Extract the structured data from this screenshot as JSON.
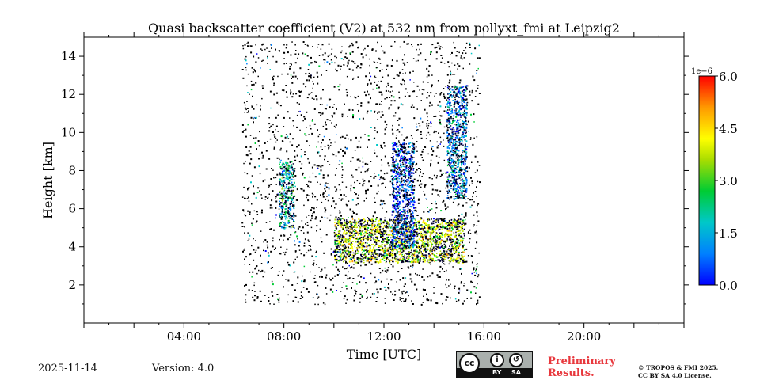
{
  "chart_data": {
    "type": "heatmap",
    "title": "Quasi backscatter coefficient (V2) at 532 nm from pollyxt_fmi at Leipzig2",
    "xlabel": "Time [UTC]",
    "ylabel": "Height [km]",
    "xlim": [
      0,
      24
    ],
    "ylim": [
      0,
      15
    ],
    "x_ticks": [
      {
        "value": 4,
        "label": "04:00"
      },
      {
        "value": 8,
        "label": "08:00"
      },
      {
        "value": 12,
        "label": "12:00"
      },
      {
        "value": 16,
        "label": "16:00"
      },
      {
        "value": 20,
        "label": "20:00"
      }
    ],
    "y_ticks": [
      {
        "value": 2,
        "label": "2"
      },
      {
        "value": 4,
        "label": "4"
      },
      {
        "value": 6,
        "label": "6"
      },
      {
        "value": 8,
        "label": "8"
      },
      {
        "value": 10,
        "label": "10"
      },
      {
        "value": 12,
        "label": "12"
      },
      {
        "value": 14,
        "label": "14"
      }
    ],
    "colorbar": {
      "min": 0.0,
      "max": 6.0,
      "exponent_label": "1e−6",
      "ticks": [
        {
          "value": 0.0,
          "label": "0.0"
        },
        {
          "value": 1.5,
          "label": "1.5"
        },
        {
          "value": 3.0,
          "label": "3.0"
        },
        {
          "value": 4.5,
          "label": "4.5"
        },
        {
          "value": 6.0,
          "label": "6.0"
        }
      ],
      "colormap": [
        "#0000ff",
        "#0080ff",
        "#00c8c8",
        "#00cc33",
        "#aadd00",
        "#ffff00",
        "#ff9900",
        "#ff0000"
      ]
    },
    "features": [
      {
        "name": "aerosol-layer",
        "t": [
          10,
          15.2
        ],
        "h": [
          3.2,
          5.5
        ],
        "value": 3.8
      },
      {
        "name": "cloud-column-1",
        "t": [
          7.8,
          8.4
        ],
        "h": [
          5.0,
          8.5
        ],
        "value": 2.0
      },
      {
        "name": "cloud-column-2",
        "t": [
          12.3,
          13.2
        ],
        "h": [
          4.0,
          9.5
        ],
        "value": 0.6
      },
      {
        "name": "cloud-column-3",
        "t": [
          14.5,
          15.3
        ],
        "h": [
          6.5,
          12.5
        ],
        "value": 1.2
      },
      {
        "name": "sparse-noise",
        "t": [
          6.3,
          15.8
        ],
        "h": [
          1.0,
          14.8
        ],
        "value": 0.2
      }
    ]
  },
  "footer": {
    "date": "2025-11-14",
    "version": "Version: 4.0",
    "preliminary_line1": "Preliminary",
    "preliminary_line2": "Results.",
    "copyright_line1": "© TROPOS & FMI 2025.",
    "copyright_line2": "CC BY SA 4.0 License.",
    "license_cc": "cc",
    "license_by": "BY",
    "license_sa": "SA"
  }
}
